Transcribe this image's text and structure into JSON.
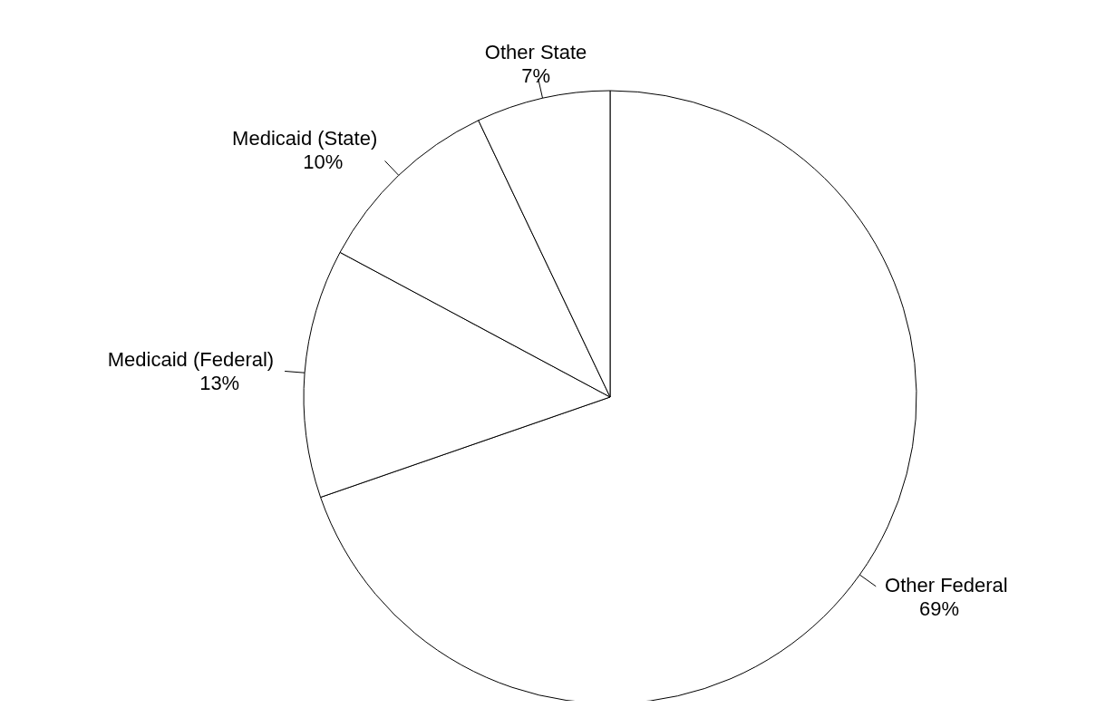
{
  "chart_data": {
    "type": "pie",
    "categories": [
      "Other Federal",
      "Medicaid (Federal)",
      "Medicaid (State)",
      "Other State"
    ],
    "values": [
      69,
      13,
      10,
      7
    ],
    "value_labels": [
      "69%",
      "13%",
      "10%",
      "7%"
    ],
    "colors": [
      "#ffffff",
      "#ffffff",
      "#ffffff",
      "#ffffff"
    ]
  }
}
